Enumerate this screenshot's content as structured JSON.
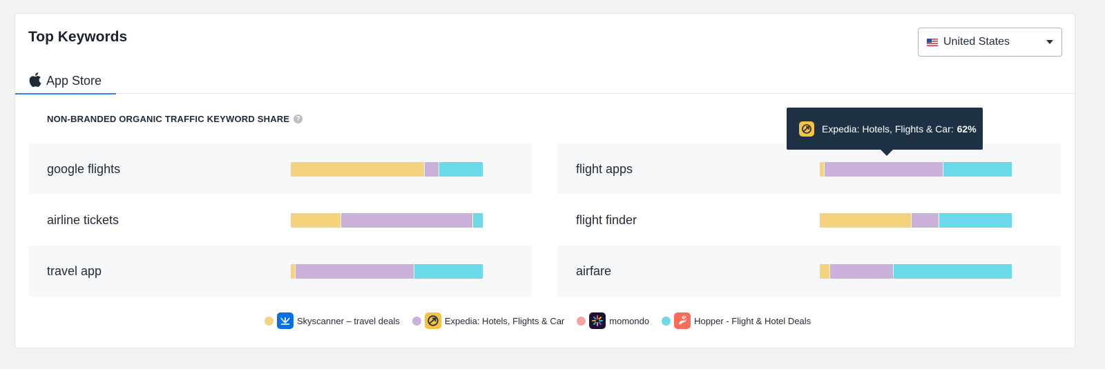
{
  "header": {
    "title": "Top Keywords"
  },
  "country_select": {
    "label": "United States",
    "icon": "us-flag-icon"
  },
  "tabs": [
    {
      "label": "App Store",
      "icon": "apple-icon",
      "active": true
    }
  ],
  "section": {
    "title": "NON-BRANDED ORGANIC TRAFFIC KEYWORD SHARE",
    "help_icon": "question-icon"
  },
  "colors": {
    "skyscanner": "#f5d37e",
    "expedia": "#c9b1dc",
    "momondo": "#f4a3a0",
    "hopper": "#6cd9ea"
  },
  "apps": [
    {
      "name": "Skyscanner – travel deals",
      "color": "#f5d37e",
      "icon": "skyscanner-icon"
    },
    {
      "name": "Expedia: Hotels, Flights & Car",
      "color": "#c9b1dc",
      "icon": "expedia-icon"
    },
    {
      "name": "momondo",
      "color": "#f4a3a0",
      "icon": "momondo-icon"
    },
    {
      "name": "Hopper - Flight & Hotel Deals",
      "color": "#6cd9ea",
      "icon": "hopper-icon"
    }
  ],
  "keywords": [
    {
      "keyword": "google flights",
      "shares": [
        70,
        7,
        0,
        23
      ]
    },
    {
      "keyword": "flight apps",
      "shares": [
        2,
        62,
        0,
        36
      ]
    },
    {
      "keyword": "airline tickets",
      "shares": [
        26,
        69,
        0,
        5
      ]
    },
    {
      "keyword": "flight finder",
      "shares": [
        48,
        14,
        0,
        38
      ]
    },
    {
      "keyword": "travel app",
      "shares": [
        2,
        62,
        0,
        36
      ]
    },
    {
      "keyword": "airfare",
      "shares": [
        5,
        33,
        0,
        62
      ]
    }
  ],
  "tooltip": {
    "app": "Expedia: Hotels, Flights & Car:",
    "value": "62%",
    "icon": "expedia-icon"
  }
}
